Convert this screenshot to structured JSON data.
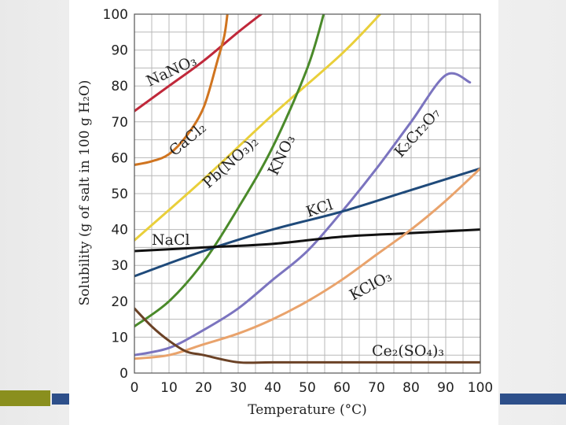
{
  "chart_data": {
    "type": "line",
    "title": "",
    "xlabel": "Temperature (°C)",
    "ylabel": "Solubility (g of salt in 100 g H₂O)",
    "xlim": [
      0,
      100
    ],
    "ylim": [
      0,
      100
    ],
    "x_ticks": [
      "0",
      "10",
      "20",
      "30",
      "40",
      "50",
      "60",
      "70",
      "80",
      "90",
      "100"
    ],
    "y_ticks": [
      "0",
      "10",
      "20",
      "30",
      "40",
      "50",
      "60",
      "70",
      "80",
      "90",
      "100"
    ],
    "grid": true,
    "series": [
      {
        "name": "NaNO3",
        "label": "NaNO₃",
        "color": "#c0283a",
        "points": [
          [
            0,
            73
          ],
          [
            10,
            80
          ],
          [
            20,
            87
          ],
          [
            30,
            95
          ],
          [
            38,
            101
          ]
        ]
      },
      {
        "name": "CaCl2",
        "label": "CaCl₂",
        "color": "#d0741f",
        "points": [
          [
            0,
            58
          ],
          [
            5,
            59
          ],
          [
            10,
            61
          ],
          [
            15,
            66
          ],
          [
            20,
            74
          ],
          [
            24,
            87
          ],
          [
            26,
            94
          ],
          [
            27,
            101
          ]
        ]
      },
      {
        "name": "Pb(NO3)2",
        "label": "Pb(NO₃)₂",
        "color": "#e9cf3a",
        "points": [
          [
            0,
            37
          ],
          [
            20,
            54
          ],
          [
            40,
            72
          ],
          [
            60,
            89
          ],
          [
            72,
            101
          ]
        ]
      },
      {
        "name": "KNO3",
        "label": "KNO₃",
        "color": "#4a8a2a",
        "points": [
          [
            0,
            13
          ],
          [
            10,
            20
          ],
          [
            20,
            31
          ],
          [
            30,
            46
          ],
          [
            40,
            63
          ],
          [
            50,
            85
          ],
          [
            55,
            101
          ]
        ]
      },
      {
        "name": "K2Cr2O7",
        "label": "K₂Cr₂O₇",
        "color": "#7b74bf",
        "points": [
          [
            0,
            5
          ],
          [
            10,
            7
          ],
          [
            20,
            12
          ],
          [
            30,
            18
          ],
          [
            40,
            26
          ],
          [
            50,
            34
          ],
          [
            60,
            45
          ],
          [
            70,
            57
          ],
          [
            80,
            70
          ],
          [
            90,
            83
          ],
          [
            100,
            80
          ]
        ]
      },
      {
        "name": "KCl",
        "label": "KCl",
        "color": "#1f4a7a",
        "points": [
          [
            0,
            27
          ],
          [
            20,
            34
          ],
          [
            40,
            40
          ],
          [
            60,
            45
          ],
          [
            80,
            51
          ],
          [
            100,
            57
          ]
        ]
      },
      {
        "name": "NaCl",
        "label": "NaCl",
        "color": "#111111",
        "points": [
          [
            0,
            34
          ],
          [
            20,
            35
          ],
          [
            40,
            36
          ],
          [
            60,
            38
          ],
          [
            80,
            39
          ],
          [
            100,
            40
          ]
        ]
      },
      {
        "name": "KClO3",
        "label": "KClO₃",
        "color": "#e9a36c",
        "points": [
          [
            0,
            4
          ],
          [
            10,
            5
          ],
          [
            20,
            8
          ],
          [
            30,
            11
          ],
          [
            40,
            15
          ],
          [
            50,
            20
          ],
          [
            60,
            26
          ],
          [
            70,
            33
          ],
          [
            80,
            40
          ],
          [
            90,
            48
          ],
          [
            100,
            57
          ]
        ]
      },
      {
        "name": "Ce2(SO4)3",
        "label": "Ce₂(SO₄)₃",
        "color": "#6b4226",
        "points": [
          [
            0,
            18
          ],
          [
            5,
            13
          ],
          [
            10,
            9
          ],
          [
            15,
            6
          ],
          [
            20,
            5
          ],
          [
            30,
            3
          ],
          [
            40,
            3
          ],
          [
            60,
            3
          ],
          [
            80,
            3
          ],
          [
            100,
            3
          ]
        ]
      }
    ]
  }
}
